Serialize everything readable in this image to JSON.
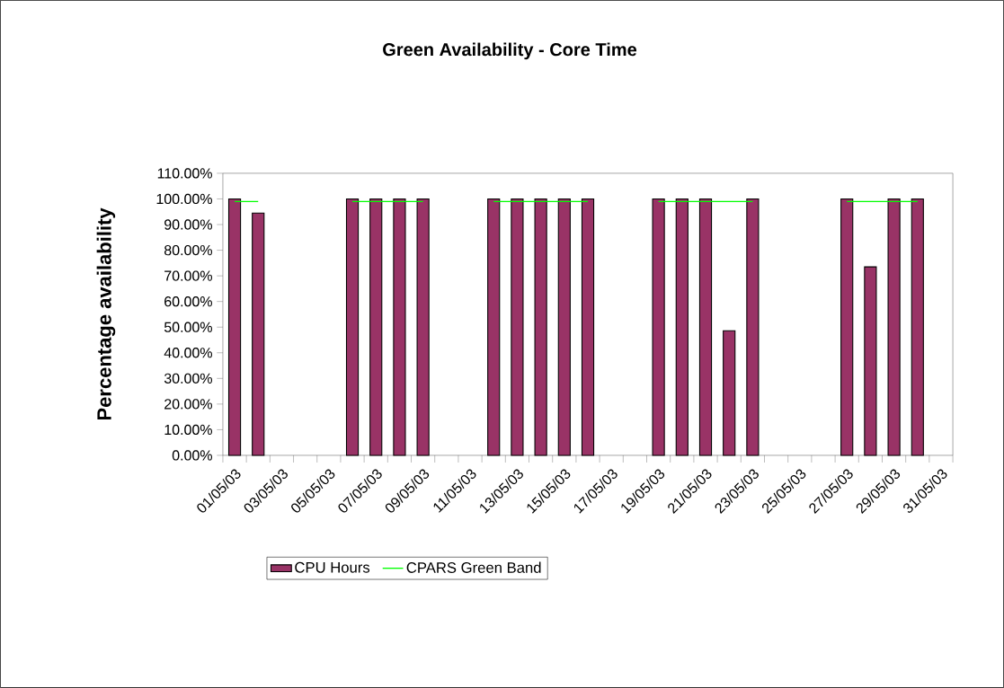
{
  "chart_data": {
    "type": "bar",
    "title": "Green Availability - Core Time",
    "ylabel": "Percentage availability",
    "categories": [
      "01/05/03",
      null,
      "03/05/03",
      null,
      "05/05/03",
      null,
      "07/05/03",
      null,
      "09/05/03",
      null,
      "11/05/03",
      null,
      "13/05/03",
      null,
      "15/05/03",
      null,
      "17/05/03",
      null,
      "19/05/03",
      null,
      "21/05/03",
      null,
      "23/05/03",
      null,
      "25/05/03",
      null,
      "27/05/03",
      null,
      "29/05/03",
      null,
      "31/05/03"
    ],
    "series": [
      {
        "name": "CPU Hours",
        "color": "#993366",
        "values": [
          100,
          94.5,
          null,
          null,
          null,
          100,
          100,
          100,
          100,
          null,
          null,
          100,
          100,
          100,
          100,
          100,
          null,
          null,
          100,
          100,
          100,
          48.6,
          100,
          null,
          null,
          null,
          100,
          73.5,
          100,
          100,
          null
        ]
      },
      {
        "name": "CPARS Green Band",
        "type": "line",
        "color": "#00ff00",
        "marker": "none",
        "values": [
          99,
          99,
          null,
          null,
          null,
          99,
          99,
          99,
          99,
          null,
          null,
          99,
          99,
          99,
          99,
          99,
          null,
          null,
          99,
          99,
          99,
          99,
          99,
          null,
          null,
          null,
          99,
          99,
          99,
          99,
          null
        ]
      }
    ],
    "ylim": [
      0,
      110
    ],
    "yticks": [
      {
        "value": 0,
        "label": "0.00%"
      },
      {
        "value": 10,
        "label": "10.00%"
      },
      {
        "value": 20,
        "label": "20.00%"
      },
      {
        "value": 30,
        "label": "30.00%"
      },
      {
        "value": 40,
        "label": "40.00%"
      },
      {
        "value": 50,
        "label": "50.00%"
      },
      {
        "value": 60,
        "label": "60.00%"
      },
      {
        "value": 70,
        "label": "70.00%"
      },
      {
        "value": 80,
        "label": "80.00%"
      },
      {
        "value": 90,
        "label": "90.00%"
      },
      {
        "value": 100,
        "label": "100.00%"
      },
      {
        "value": 110,
        "label": "110.00%"
      }
    ],
    "grid": false,
    "legend": "bottom"
  }
}
